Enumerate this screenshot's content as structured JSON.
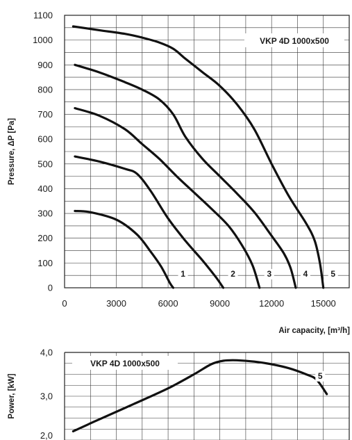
{
  "chart_data": [
    {
      "type": "line",
      "title": "VKP 4D 1000x500",
      "xlabel": "Air capacity, [m³/h]",
      "ylabel": "Pressure, ΔP [Pa]",
      "xlim": [
        0,
        16500
      ],
      "ylim": [
        0,
        1100
      ],
      "x_ticks": [
        "0",
        "3000",
        "6000",
        "9000",
        "12000",
        "15000"
      ],
      "y_ticks": [
        "0",
        "100",
        "200",
        "300",
        "400",
        "500",
        "600",
        "700",
        "800",
        "900",
        "1000",
        "1100"
      ],
      "grid": true,
      "series": [
        {
          "name": "1",
          "x": [
            600,
            1500,
            3000,
            4200,
            5000,
            5600,
            6100,
            6300
          ],
          "y": [
            310,
            305,
            275,
            215,
            145,
            85,
            20,
            0
          ]
        },
        {
          "name": "2",
          "x": [
            600,
            2000,
            3500,
            4200,
            5000,
            6000,
            7000,
            8000,
            8800,
            9200
          ],
          "y": [
            530,
            510,
            480,
            460,
            390,
            280,
            190,
            110,
            40,
            0
          ]
        },
        {
          "name": "3",
          "x": [
            600,
            2000,
            3500,
            4500,
            5500,
            6500,
            7500,
            8500,
            9500,
            10300,
            10900,
            11300
          ],
          "y": [
            725,
            695,
            640,
            580,
            520,
            450,
            385,
            320,
            250,
            170,
            90,
            0
          ]
        },
        {
          "name": "4",
          "x": [
            600,
            2000,
            3500,
            4500,
            5500,
            6300,
            7000,
            8000,
            9000,
            10000,
            11000,
            12000,
            12700,
            13100,
            13400
          ],
          "y": [
            900,
            870,
            830,
            800,
            760,
            700,
            610,
            520,
            450,
            380,
            305,
            210,
            140,
            80,
            0
          ]
        },
        {
          "name": "5",
          "x": [
            500,
            2000,
            3500,
            4500,
            5500,
            6300,
            7000,
            8000,
            9000,
            10000,
            11000,
            12000,
            13000,
            14000,
            14500,
            14800,
            15000
          ],
          "y": [
            1055,
            1040,
            1025,
            1010,
            990,
            965,
            925,
            870,
            815,
            740,
            640,
            500,
            370,
            260,
            190,
            100,
            0
          ]
        }
      ]
    },
    {
      "type": "line",
      "title": "VKP 4D 1000x500",
      "ylabel": "Power, [kW]",
      "xlim": [
        0,
        16500
      ],
      "ylim": [
        2.0,
        4.0
      ],
      "y_ticks": [
        "2,0",
        "3,0",
        "4,0"
      ],
      "grid": true,
      "series": [
        {
          "name": "5",
          "x": [
            500,
            2000,
            4000,
            6000,
            7500,
            8500,
            9200,
            10000,
            11000,
            12000,
            13000,
            14000,
            14600,
            15200
          ],
          "y": [
            2.2,
            2.47,
            2.82,
            3.18,
            3.5,
            3.73,
            3.81,
            3.82,
            3.79,
            3.73,
            3.64,
            3.5,
            3.38,
            3.05
          ]
        }
      ]
    }
  ]
}
